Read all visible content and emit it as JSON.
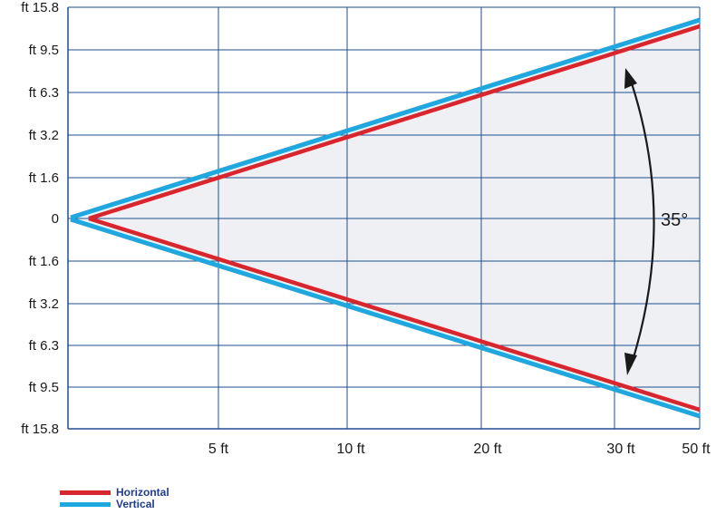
{
  "chart_data": {
    "type": "line",
    "title": "",
    "xlabel": "",
    "ylabel": "",
    "x_ticks": [
      "5 ft",
      "10 ft",
      "20 ft",
      "30 ft",
      "50 ft"
    ],
    "y_ticks": [
      "ft 15.8",
      "ft 9.5",
      "ft 6.3",
      "ft 3.2",
      "ft 1.6",
      "0",
      "ft 1.6",
      "ft 3.2",
      "ft 6.3",
      "ft 9.5",
      "ft 15.8"
    ],
    "grid": true,
    "beam_angle_label": "35°",
    "legend_position": "bottom-left",
    "series": [
      {
        "name": "Horizontal",
        "color": "#d7262d",
        "upper": [
          [
            "0",
            "0"
          ],
          [
            "5 ft",
            "ft 1.6"
          ],
          [
            "10 ft",
            "ft 3.2"
          ],
          [
            "20 ft",
            "ft 6.3"
          ],
          [
            "30 ft",
            "ft 9.5"
          ],
          [
            "50 ft",
            "ft 15.8"
          ]
        ],
        "lower": [
          [
            "0",
            "0"
          ],
          [
            "5 ft",
            "ft 1.6"
          ],
          [
            "10 ft",
            "ft 3.2"
          ],
          [
            "20 ft",
            "ft 6.3"
          ],
          [
            "30 ft",
            "ft 9.5"
          ],
          [
            "50 ft",
            "ft 15.8"
          ]
        ]
      },
      {
        "name": "Vertical",
        "color": "#1fa8e0",
        "upper": [
          [
            "0",
            "0"
          ],
          [
            "5 ft",
            "ft 1.6"
          ],
          [
            "10 ft",
            "ft 3.2"
          ],
          [
            "20 ft",
            "ft 6.3"
          ],
          [
            "30 ft",
            "ft 9.5"
          ],
          [
            "50 ft",
            "ft 15.8"
          ]
        ],
        "lower": [
          [
            "0",
            "0"
          ],
          [
            "5 ft",
            "ft 1.6"
          ],
          [
            "10 ft",
            "ft 3.2"
          ],
          [
            "20 ft",
            "ft 6.3"
          ],
          [
            "30 ft",
            "ft 9.5"
          ],
          [
            "50 ft",
            "ft 15.8"
          ]
        ]
      }
    ],
    "colors": {
      "grid": "#1f4f8f",
      "fill": "#eef0f4",
      "arrow": "#1a1a1a"
    }
  }
}
